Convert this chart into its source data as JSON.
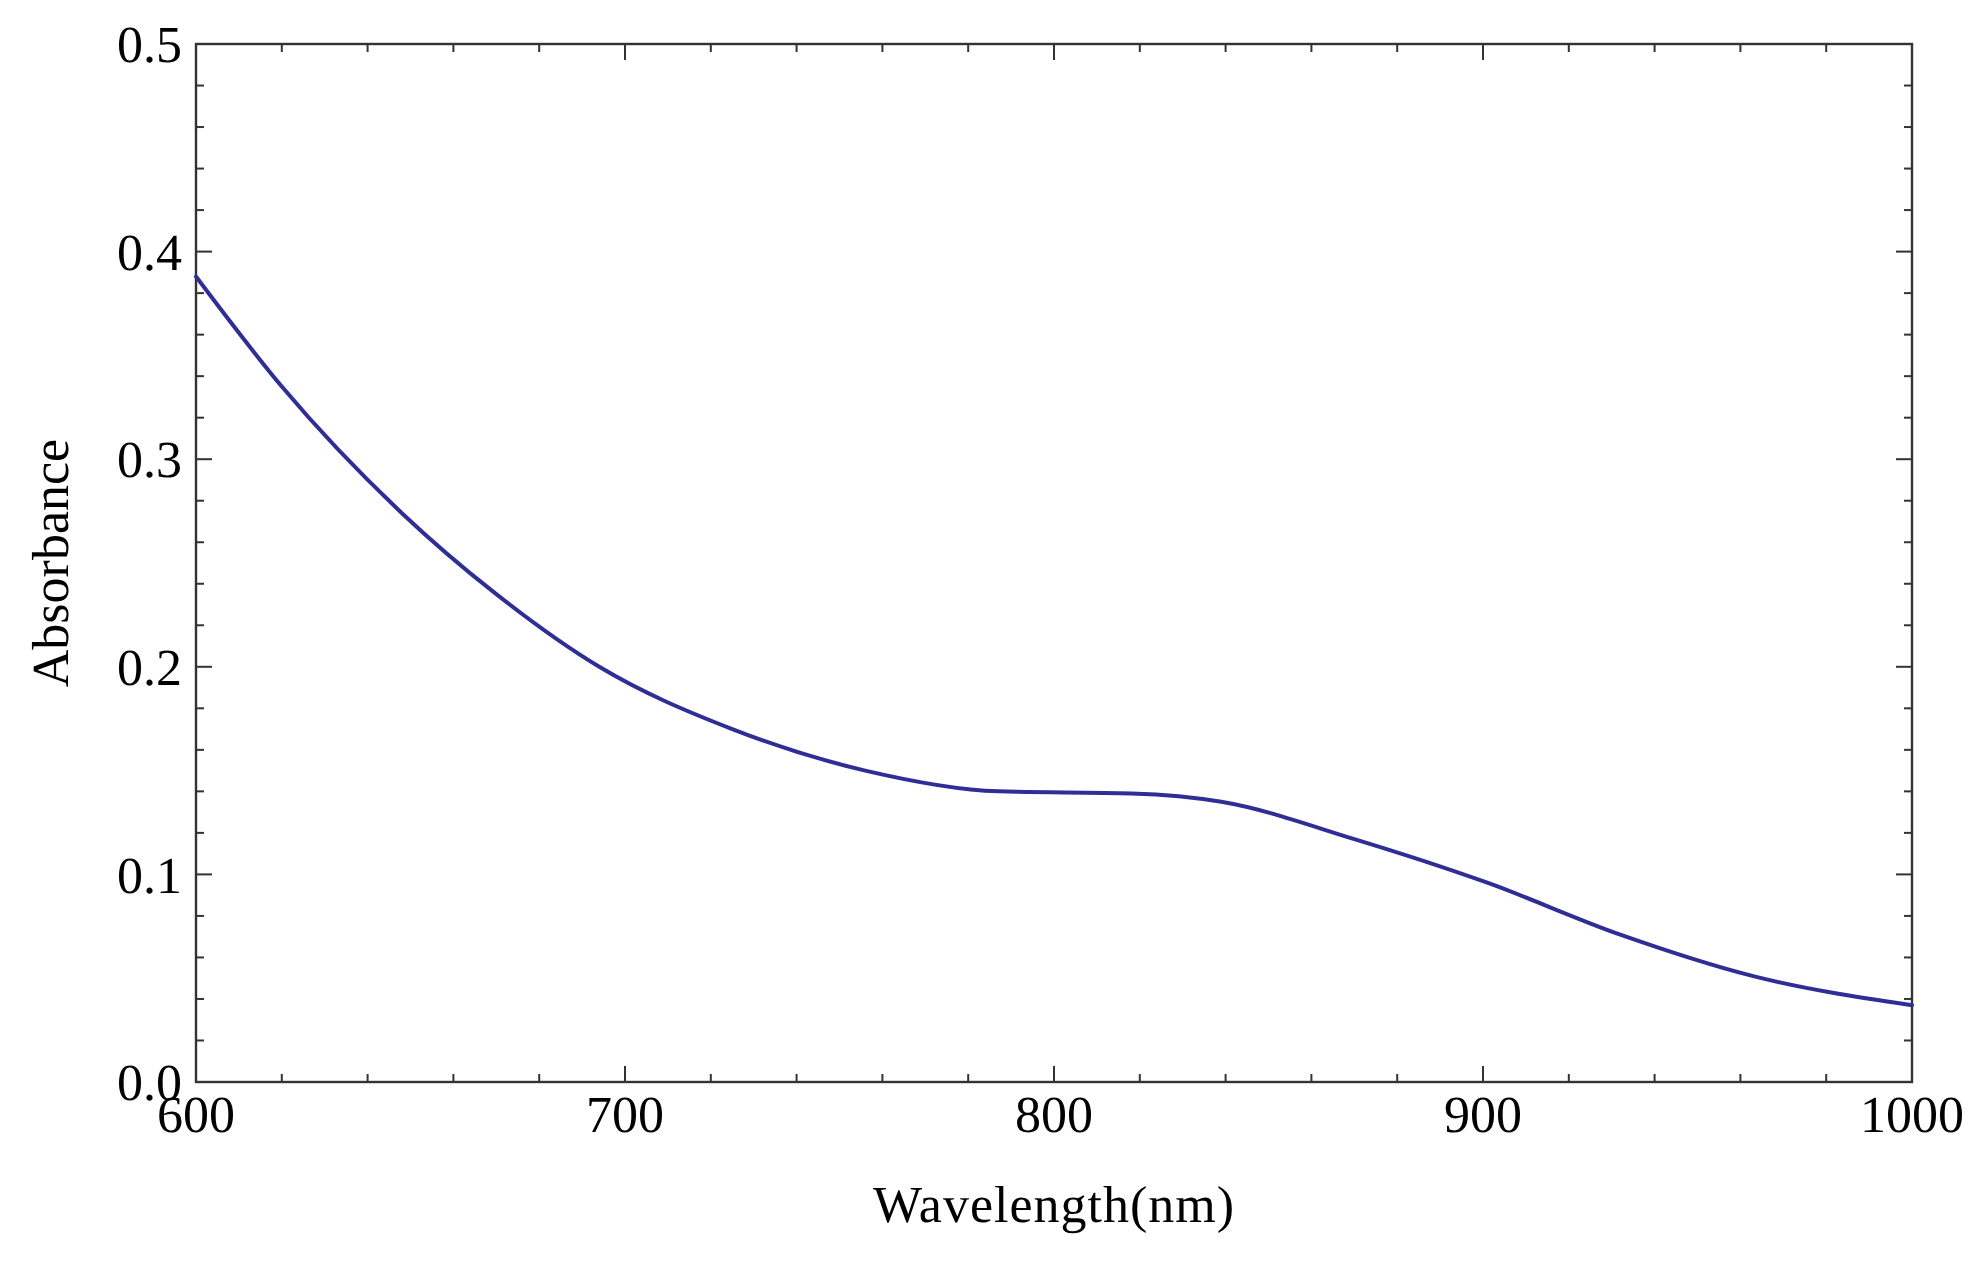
{
  "chart_data": {
    "type": "line",
    "xlabel": "Wavelength(nm)",
    "ylabel": "Absorbance",
    "xlim": [
      600,
      1000
    ],
    "ylim": [
      0,
      0.5
    ],
    "xticks": [
      600,
      {
        "value": 620,
        "label": null
      },
      {
        "value": 640,
        "label": null
      },
      {
        "value": 660,
        "label": null
      },
      {
        "value": 680,
        "label": null
      },
      700,
      {
        "value": 720,
        "label": null
      },
      {
        "value": 740,
        "label": null
      },
      {
        "value": 760,
        "label": null
      },
      {
        "value": 780,
        "label": null
      },
      800,
      {
        "value": 820,
        "label": null
      },
      {
        "value": 840,
        "label": null
      },
      {
        "value": 860,
        "label": null
      },
      {
        "value": 880,
        "label": null
      },
      900,
      {
        "value": 920,
        "label": null
      },
      {
        "value": 940,
        "label": null
      },
      {
        "value": 960,
        "label": null
      },
      {
        "value": 980,
        "label": null
      },
      1000
    ],
    "yticks": [
      {
        "value": 0,
        "label": "0.0"
      },
      {
        "value": 0.02,
        "label": null
      },
      {
        "value": 0.04,
        "label": null
      },
      {
        "value": 0.06,
        "label": null
      },
      {
        "value": 0.08,
        "label": null
      },
      0.1,
      {
        "value": 0.12,
        "label": null
      },
      {
        "value": 0.14,
        "label": null
      },
      {
        "value": 0.16,
        "label": null
      },
      {
        "value": 0.18,
        "label": null
      },
      0.2,
      {
        "value": 0.22,
        "label": null
      },
      {
        "value": 0.24,
        "label": null
      },
      {
        "value": 0.26,
        "label": null
      },
      {
        "value": 0.28,
        "label": null
      },
      0.3,
      {
        "value": 0.32,
        "label": null
      },
      {
        "value": 0.34,
        "label": null
      },
      {
        "value": 0.36,
        "label": null
      },
      {
        "value": 0.38,
        "label": null
      },
      0.4,
      {
        "value": 0.42,
        "label": null
      },
      {
        "value": 0.44,
        "label": null
      },
      {
        "value": 0.46,
        "label": null
      },
      {
        "value": 0.48,
        "label": null
      },
      0.5
    ],
    "series": [
      {
        "color": "#2e2e96",
        "x": [
          600,
          620,
          648,
          670,
          694,
          725,
          756,
          787,
          818,
          839,
          870,
          901,
          932,
          963,
          1000
        ],
        "values": [
          0.388,
          0.335,
          0.274,
          0.235,
          0.2,
          0.17,
          0.15,
          0.14,
          0.139,
          0.135,
          0.117,
          0.096,
          0.071,
          0.051,
          0.037
        ]
      }
    ]
  }
}
